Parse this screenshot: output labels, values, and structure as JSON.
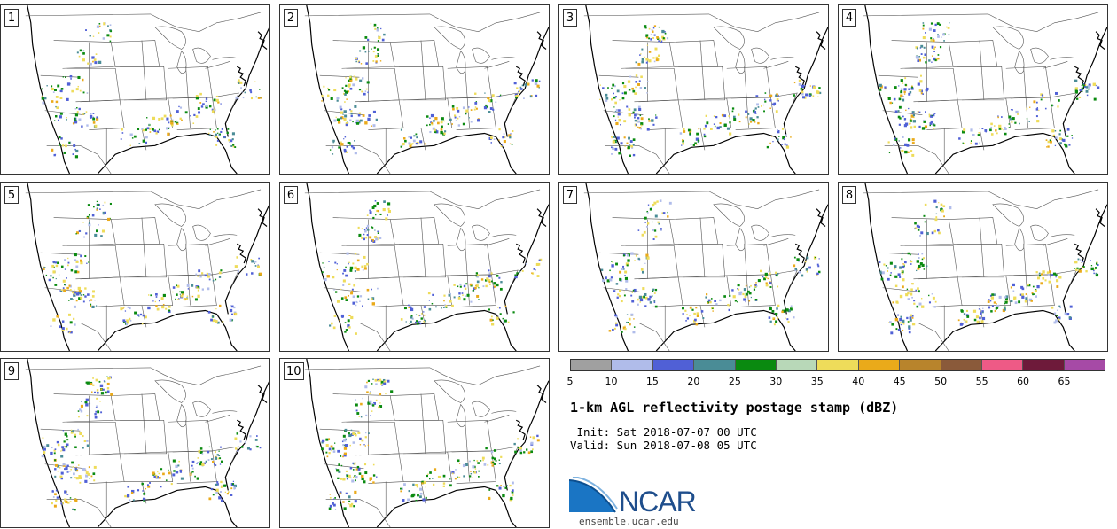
{
  "members": [
    "1",
    "2",
    "3",
    "4",
    "5",
    "6",
    "7",
    "8",
    "9",
    "10"
  ],
  "colorbar": {
    "colors": [
      "#a0a0a0",
      "#b0bcea",
      "#5060d6",
      "#4a8c96",
      "#0a8a10",
      "#b8d8b8",
      "#eedc5a",
      "#eaaa1a",
      "#b8842c",
      "#8a5a3a",
      "#ee5a86",
      "#6e1a3a",
      "#a64aa6"
    ],
    "ticks": [
      "5",
      "10",
      "15",
      "20",
      "25",
      "30",
      "35",
      "40",
      "45",
      "50",
      "55",
      "60",
      "65"
    ],
    "tick_values": [
      5,
      10,
      15,
      20,
      25,
      30,
      35,
      40,
      45,
      50,
      55,
      60,
      65
    ],
    "range": [
      5,
      70
    ]
  },
  "title": "1-km AGL reflectivity postage stamp (dBZ)",
  "init_line": " Init: Sat 2018-07-07 00 UTC",
  "valid_line": "Valid: Sun 2018-07-08 05 UTC",
  "logo": {
    "name": "NCAR",
    "url": "ensemble.ucar.edu"
  }
}
